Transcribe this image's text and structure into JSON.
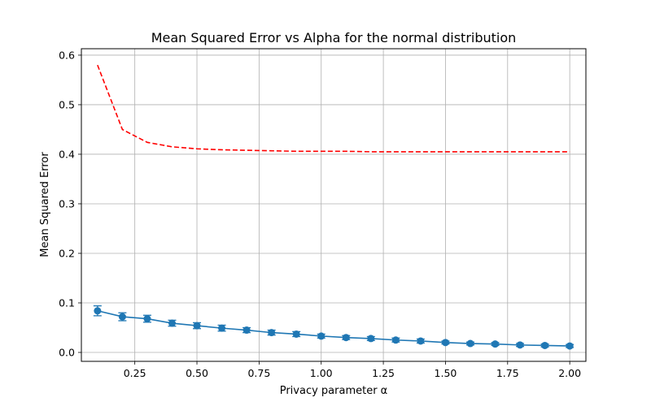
{
  "chart_data": {
    "type": "line",
    "title": "Mean Squared Error vs Alpha for the normal distribution",
    "xlabel": "Privacy parameter α",
    "ylabel": "Mean Squared Error",
    "xlim": [
      0.035,
      2.065
    ],
    "ylim": [
      -0.018,
      0.613
    ],
    "xticks": [
      0.25,
      0.5,
      0.75,
      1.0,
      1.25,
      1.5,
      1.75,
      2.0
    ],
    "xtick_labels": [
      "0.25",
      "0.50",
      "0.75",
      "1.00",
      "1.25",
      "1.50",
      "1.75",
      "2.00"
    ],
    "yticks": [
      0.0,
      0.1,
      0.2,
      0.3,
      0.4,
      0.5,
      0.6
    ],
    "ytick_labels": [
      "0.0",
      "0.1",
      "0.2",
      "0.3",
      "0.4",
      "0.5",
      "0.6"
    ],
    "grid": true,
    "x": [
      0.1,
      0.2,
      0.3,
      0.4,
      0.5,
      0.6,
      0.7,
      0.8,
      0.9,
      1.0,
      1.1,
      1.2,
      1.3,
      1.4,
      1.5,
      1.6,
      1.7,
      1.8,
      1.9,
      2.0
    ],
    "series": [
      {
        "style": "dashed",
        "color": "#ff0000",
        "values": [
          0.58,
          0.45,
          0.424,
          0.415,
          0.411,
          0.409,
          0.408,
          0.407,
          0.406,
          0.406,
          0.406,
          0.405,
          0.405,
          0.405,
          0.405,
          0.405,
          0.405,
          0.405,
          0.405,
          0.405
        ]
      },
      {
        "style": "solid-markers-errorbars",
        "color": "#1f77b4",
        "values": [
          0.084,
          0.072,
          0.068,
          0.059,
          0.054,
          0.049,
          0.045,
          0.04,
          0.037,
          0.033,
          0.03,
          0.028,
          0.025,
          0.023,
          0.02,
          0.018,
          0.017,
          0.015,
          0.014,
          0.013
        ],
        "errors": [
          0.01,
          0.008,
          0.007,
          0.006,
          0.006,
          0.006,
          0.005,
          0.005,
          0.005,
          0.004,
          0.004,
          0.004,
          0.004,
          0.004,
          0.003,
          0.003,
          0.003,
          0.003,
          0.003,
          0.003
        ]
      }
    ]
  }
}
